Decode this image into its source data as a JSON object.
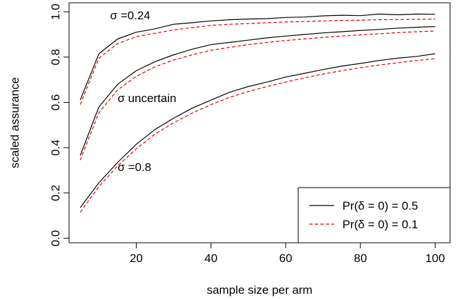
{
  "chart_data": {
    "type": "line",
    "title": "",
    "xlabel": "sample size per arm",
    "ylabel": "scaled assurance",
    "xlim": [
      2,
      104
    ],
    "ylim": [
      -0.02,
      1.04
    ],
    "xticks": [
      20,
      40,
      60,
      80,
      100
    ],
    "xtick_labels": [
      "20",
      "40",
      "60",
      "80",
      "100"
    ],
    "yticks": [
      0.0,
      0.2,
      0.4,
      0.6,
      0.8,
      1.0
    ],
    "ytick_labels": [
      "0.0",
      "0.2",
      "0.4",
      "0.6",
      "0.8",
      "1.0"
    ],
    "grid": false,
    "legend_position": "bottom-right",
    "legend": [
      {
        "label": "Pr(δ = 0) = 0.5",
        "color": "#000000",
        "style": "solid"
      },
      {
        "label": "Pr(δ = 0) = 0.1",
        "color": "#dd0000",
        "style": "dashed"
      }
    ],
    "annotations": [
      {
        "text": "σ =0.24",
        "x": 13,
        "y": 0.985
      },
      {
        "text": "σ uncertain",
        "x": 15,
        "y": 0.62
      },
      {
        "text": "σ =0.8",
        "x": 15,
        "y": 0.315
      }
    ],
    "series": [
      {
        "group": "σ =0.24",
        "legend_ref": 0,
        "color": "#000000",
        "dash": "solid",
        "x": [
          5,
          10,
          15,
          20,
          25,
          30,
          35,
          40,
          45,
          50,
          55,
          60,
          65,
          70,
          75,
          80,
          85,
          90,
          95,
          100
        ],
        "y": [
          0.61,
          0.815,
          0.88,
          0.91,
          0.925,
          0.945,
          0.952,
          0.96,
          0.965,
          0.968,
          0.97,
          0.975,
          0.977,
          0.982,
          0.985,
          0.983,
          0.99,
          0.987,
          0.99,
          0.989
        ]
      },
      {
        "group": "σ =0.24",
        "legend_ref": 1,
        "color": "#dd0000",
        "dash": "dashed",
        "x": [
          5,
          10,
          15,
          20,
          25,
          30,
          35,
          40,
          45,
          50,
          55,
          60,
          65,
          70,
          75,
          80,
          85,
          90,
          95,
          100
        ],
        "y": [
          0.59,
          0.795,
          0.86,
          0.89,
          0.905,
          0.92,
          0.93,
          0.94,
          0.945,
          0.948,
          0.952,
          0.955,
          0.957,
          0.96,
          0.962,
          0.963,
          0.965,
          0.966,
          0.967,
          0.968
        ]
      },
      {
        "group": "σ uncertain",
        "legend_ref": 0,
        "color": "#000000",
        "dash": "solid",
        "x": [
          5,
          10,
          15,
          20,
          25,
          30,
          35,
          40,
          45,
          50,
          55,
          60,
          65,
          70,
          75,
          80,
          85,
          90,
          95,
          100
        ],
        "y": [
          0.365,
          0.58,
          0.68,
          0.74,
          0.78,
          0.81,
          0.835,
          0.855,
          0.865,
          0.875,
          0.885,
          0.893,
          0.9,
          0.907,
          0.912,
          0.918,
          0.922,
          0.928,
          0.932,
          0.935
        ]
      },
      {
        "group": "σ uncertain",
        "legend_ref": 1,
        "color": "#dd0000",
        "dash": "dashed",
        "x": [
          5,
          10,
          15,
          20,
          25,
          30,
          35,
          40,
          45,
          50,
          55,
          60,
          65,
          70,
          75,
          80,
          85,
          90,
          95,
          100
        ],
        "y": [
          0.345,
          0.555,
          0.655,
          0.715,
          0.757,
          0.787,
          0.81,
          0.83,
          0.843,
          0.855,
          0.865,
          0.873,
          0.88,
          0.887,
          0.893,
          0.898,
          0.903,
          0.908,
          0.912,
          0.915
        ]
      },
      {
        "group": "σ =0.8",
        "legend_ref": 0,
        "color": "#000000",
        "dash": "solid",
        "x": [
          5,
          10,
          15,
          20,
          25,
          30,
          35,
          40,
          45,
          50,
          55,
          60,
          65,
          70,
          75,
          80,
          85,
          90,
          95,
          100
        ],
        "y": [
          0.135,
          0.245,
          0.335,
          0.415,
          0.48,
          0.53,
          0.575,
          0.61,
          0.645,
          0.67,
          0.69,
          0.712,
          0.728,
          0.745,
          0.76,
          0.772,
          0.785,
          0.795,
          0.803,
          0.815
        ]
      },
      {
        "group": "σ =0.8",
        "legend_ref": 1,
        "color": "#dd0000",
        "dash": "dashed",
        "x": [
          5,
          10,
          15,
          20,
          25,
          30,
          35,
          40,
          45,
          50,
          55,
          60,
          65,
          70,
          75,
          80,
          85,
          90,
          95,
          100
        ],
        "y": [
          0.115,
          0.228,
          0.32,
          0.395,
          0.46,
          0.51,
          0.553,
          0.59,
          0.622,
          0.648,
          0.67,
          0.69,
          0.708,
          0.725,
          0.74,
          0.753,
          0.765,
          0.775,
          0.785,
          0.793
        ]
      }
    ]
  }
}
